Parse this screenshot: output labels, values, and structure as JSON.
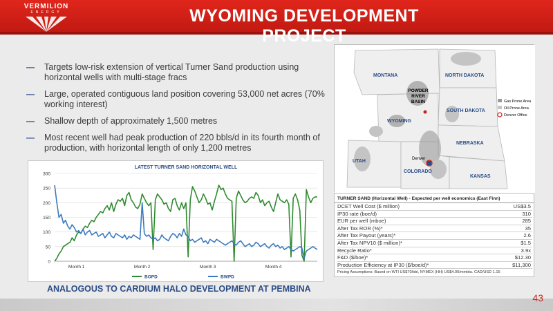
{
  "header": {
    "logo_text": "VERMILION",
    "logo_sub": "ENERGY",
    "title": "WYOMING DEVELOPMENT PROJECT"
  },
  "bullets": [
    "Targets low-risk extension of vertical Turner Sand production using horizontal wells with multi-stage fracs",
    "Large, operated contiguous land position covering 53,000 net acres (70% working interest)",
    "Shallow depth of approximately 1,500 metres",
    "Most recent well had peak production of 220 bbls/d in its fourth month of production, with horizontal length of only 1,200 metres"
  ],
  "footer": "ANALOGOUS TO CARDIUM HALO DEVELOPMENT AT PEMBINA",
  "page_number": "43",
  "map": {
    "states": [
      "MONTANA",
      "NORTH DAKOTA",
      "SOUTH DAKOTA",
      "WYOMING",
      "NEBRASKA",
      "UTAH",
      "COLORADO",
      "KANSAS"
    ],
    "basin_label": [
      "POWDER",
      "RIVER",
      "BASIN"
    ],
    "city_label": "Denver",
    "legend": [
      "Gas Prone Area",
      "Oil Prone Area",
      "Denver Office"
    ]
  },
  "table": {
    "title": "TURNER SAND (Horizontal Well) - Expected per well economics (East Finn)",
    "rows": [
      {
        "label": "DCET Well Cost ($ million)",
        "value": "US$3.5"
      },
      {
        "label": "IP30 rate (boe/d)",
        "value": "310"
      },
      {
        "label": "EUR per well (mboe)",
        "value": "285"
      },
      {
        "label": "After Tax ROR (%)*",
        "value": "35"
      },
      {
        "label": "After Tax Payout (years)*",
        "value": "2.6"
      },
      {
        "label": "After Tax NPV10 ($ million)*",
        "value": "$1.5"
      },
      {
        "label": "Recycle Ratio*",
        "value": "3.9x"
      },
      {
        "label": "F&D ($/boe)*",
        "value": "$12.30"
      },
      {
        "label": "Production Efficiency at IP30 ($/boe/d)*",
        "value": "$11,300"
      }
    ],
    "pricing": "Pricing Assumptions:  Based on WTI US$70/bbl, NYMEX (HH) US$4.00/mmbtu.  CAD/USD 1.15"
  },
  "chart_data": {
    "type": "line",
    "title": "LATEST TURNER SAND HORIZONTAL WELL",
    "xlabel": "",
    "ylabel": "",
    "ylim": [
      0,
      300
    ],
    "yticks": [
      0,
      50,
      100,
      150,
      200,
      250,
      300
    ],
    "xticks": [
      {
        "label": "Month 1",
        "x": 10
      },
      {
        "label": "Month 2",
        "x": 40
      },
      {
        "label": "Month 3",
        "x": 70
      },
      {
        "label": "Month 4",
        "x": 100
      }
    ],
    "xlim": [
      0,
      120
    ],
    "legend": "bottom",
    "series": [
      {
        "name": "BOPD",
        "color": "#2f8a2f",
        "values": [
          0,
          10,
          25,
          35,
          50,
          55,
          60,
          65,
          80,
          70,
          90,
          100,
          95,
          110,
          120,
          115,
          130,
          140,
          135,
          150,
          160,
          170,
          165,
          180,
          190,
          175,
          200,
          170,
          195,
          210,
          205,
          215,
          190,
          225,
          235,
          210,
          200,
          185,
          180,
          195,
          230,
          215,
          200,
          190,
          200,
          40,
          210,
          230,
          220,
          210,
          195,
          200,
          180,
          170,
          210,
          215,
          190,
          175,
          200,
          180,
          200,
          15,
          210,
          255,
          240,
          220,
          200,
          210,
          230,
          215,
          195,
          200,
          175,
          205,
          230,
          260,
          245,
          250,
          230,
          215,
          210,
          205,
          0,
          215,
          240,
          225,
          210,
          200,
          205,
          215,
          220,
          215,
          235,
          225,
          200,
          210,
          190,
          200,
          205,
          185,
          170,
          200,
          230,
          210,
          205,
          200,
          210,
          195,
          15,
          215,
          230,
          210,
          175,
          20,
          0,
          245,
          220,
          200,
          215,
          220,
          220
        ]
      },
      {
        "name": "BWPD",
        "color": "#3a7abf",
        "values": [
          260,
          200,
          150,
          160,
          130,
          140,
          120,
          110,
          125,
          115,
          100,
          105,
          95,
          110,
          90,
          100,
          105,
          90,
          95,
          100,
          85,
          90,
          95,
          80,
          90,
          100,
          85,
          80,
          95,
          90,
          85,
          80,
          90,
          75,
          85,
          80,
          90,
          85,
          80,
          75,
          200,
          95,
          85,
          90,
          80,
          75,
          80,
          70,
          75,
          90,
          80,
          75,
          70,
          85,
          95,
          90,
          80,
          95,
          85,
          110,
          90,
          85,
          70,
          75,
          65,
          70,
          75,
          80,
          65,
          70,
          60,
          75,
          70,
          65,
          75,
          70,
          65,
          60,
          55,
          60,
          65,
          70,
          60,
          55,
          65,
          70,
          60,
          50,
          55,
          60,
          50,
          55,
          65,
          60,
          50,
          55,
          60,
          50,
          45,
          55,
          60,
          50,
          55,
          45,
          50,
          40,
          45,
          50,
          40,
          35,
          40,
          45,
          50,
          45,
          10,
          35,
          40,
          45,
          50,
          45,
          40
        ]
      }
    ]
  }
}
